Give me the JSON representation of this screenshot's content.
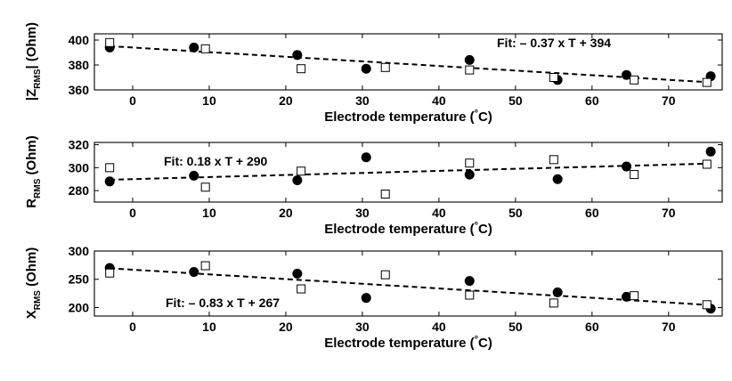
{
  "chart_data": [
    {
      "type": "scatter",
      "ylabel_main": "|Z",
      "ylabel_sub": "RMS",
      "ylabel_tail": "| (Ohm)",
      "xlabel": "Electrode temperature (",
      "xlabel_deg": "°",
      "xlabel_tail": "C)",
      "xlim": [
        -5,
        77
      ],
      "ylim": [
        360,
        405
      ],
      "xticks": [
        0,
        10,
        20,
        30,
        40,
        50,
        60,
        70
      ],
      "yticks": [
        360,
        380,
        400
      ],
      "series": [
        {
          "marker": "filled-circle",
          "x": [
            -3,
            8,
            21.5,
            30.5,
            44,
            55.5,
            64.5,
            75.5
          ],
          "y": [
            394,
            394,
            388,
            377,
            384,
            368,
            372,
            371
          ]
        },
        {
          "marker": "open-square",
          "x": [
            -3,
            9.5,
            22,
            33,
            44,
            55,
            65.5,
            75
          ],
          "y": [
            398,
            393,
            377,
            378,
            376,
            370,
            368,
            366
          ]
        }
      ],
      "fit": {
        "label": "Fit: – 0.37 x T + 394",
        "slope": -0.37,
        "intercept": 394,
        "x": [
          -3,
          75.5
        ]
      }
    },
    {
      "type": "scatter",
      "ylabel_main": "R",
      "ylabel_sub": "RMS",
      "ylabel_tail": " (Ohm)",
      "xlabel": "Electrode temperature (",
      "xlabel_deg": "°",
      "xlabel_tail": "C)",
      "xlim": [
        -5,
        77
      ],
      "ylim": [
        270,
        322
      ],
      "xticks": [
        0,
        10,
        20,
        30,
        40,
        50,
        60,
        70
      ],
      "yticks": [
        280,
        300,
        320
      ],
      "series": [
        {
          "marker": "filled-circle",
          "x": [
            -3,
            8,
            21.5,
            30.5,
            44,
            55.5,
            64.5,
            75.5
          ],
          "y": [
            288,
            293,
            289,
            309,
            294,
            290,
            301,
            314
          ]
        },
        {
          "marker": "open-square",
          "x": [
            -3,
            9.5,
            22,
            33,
            44,
            55,
            65.5,
            75
          ],
          "y": [
            300,
            283,
            297,
            277,
            304,
            307,
            294,
            303
          ]
        }
      ],
      "fit": {
        "label": "Fit: 0.18 x T + 290",
        "slope": 0.18,
        "intercept": 290,
        "x": [
          -3,
          75.5
        ]
      }
    },
    {
      "type": "scatter",
      "ylabel_main": "X",
      "ylabel_sub": "RMS",
      "ylabel_tail": " (Ohm)",
      "xlabel": "Electrode temperature (",
      "xlabel_deg": "°",
      "xlabel_tail": "C)",
      "xlim": [
        -5,
        77
      ],
      "ylim": [
        185,
        300
      ],
      "xticks": [
        0,
        10,
        20,
        30,
        40,
        50,
        60,
        70
      ],
      "yticks": [
        200,
        250,
        300
      ],
      "series": [
        {
          "marker": "filled-circle",
          "x": [
            -3,
            8,
            21.5,
            30.5,
            44,
            55.5,
            64.5,
            75.5
          ],
          "y": [
            270,
            263,
            260,
            217,
            247,
            227,
            219,
            198
          ]
        },
        {
          "marker": "open-square",
          "x": [
            -3,
            9.5,
            22,
            33,
            44,
            55,
            65.5,
            75
          ],
          "y": [
            261,
            274,
            233,
            258,
            222,
            208,
            221,
            205
          ]
        }
      ],
      "fit": {
        "label": "Fit: – 0.83 x T + 267",
        "slope": -0.83,
        "intercept": 267,
        "x": [
          -3,
          75.5
        ]
      }
    }
  ]
}
